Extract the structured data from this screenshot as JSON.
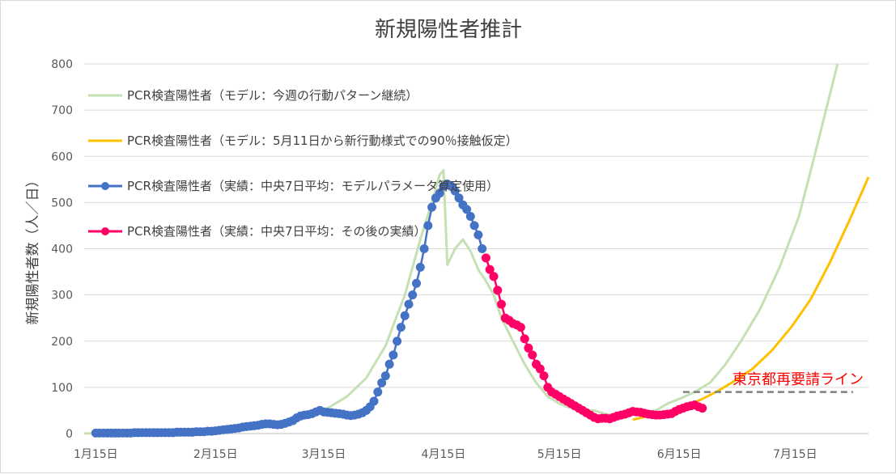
{
  "chart_data": {
    "type": "line",
    "title": "新規陽性者推計",
    "ylabel": "新規陽性者数（人／日）",
    "xlabel": "",
    "ylim": [
      0,
      800
    ],
    "yticks": [
      "0",
      "100",
      "200",
      "300",
      "400",
      "500",
      "600",
      "700",
      "800"
    ],
    "xticks": [
      {
        "label": "1月15日",
        "day": 0
      },
      {
        "label": "2月15日",
        "day": 31
      },
      {
        "label": "3月15日",
        "day": 59
      },
      {
        "label": "4月15日",
        "day": 90
      },
      {
        "label": "5月15日",
        "day": 120
      },
      {
        "label": "6月15日",
        "day": 151
      },
      {
        "label": "7月15日",
        "day": 181
      }
    ],
    "xlim": [
      -3,
      200
    ],
    "grid": "horizontal",
    "legend_position": "top-left",
    "series": [
      {
        "name": "PCR検査陽性者（モデル：今週の行動パターン継続）",
        "color": "#c5e0b4",
        "marker": false,
        "points": [
          [
            -3,
            0
          ],
          [
            0,
            1
          ],
          [
            10,
            2
          ],
          [
            20,
            3
          ],
          [
            30,
            6
          ],
          [
            40,
            13
          ],
          [
            45,
            18
          ],
          [
            50,
            28
          ],
          [
            55,
            40
          ],
          [
            60,
            55
          ],
          [
            65,
            80
          ],
          [
            70,
            120
          ],
          [
            75,
            190
          ],
          [
            80,
            300
          ],
          [
            84,
            420
          ],
          [
            87,
            500
          ],
          [
            89,
            560
          ],
          [
            90,
            570
          ],
          [
            91,
            365
          ],
          [
            93,
            400
          ],
          [
            95,
            420
          ],
          [
            97,
            395
          ],
          [
            99,
            355
          ],
          [
            101,
            330
          ],
          [
            103,
            300
          ],
          [
            105,
            250
          ],
          [
            108,
            200
          ],
          [
            111,
            150
          ],
          [
            114,
            110
          ],
          [
            117,
            80
          ],
          [
            120,
            65
          ],
          [
            123,
            55
          ],
          [
            126,
            48
          ],
          [
            129,
            50
          ],
          [
            132,
            42
          ],
          [
            134,
            40
          ],
          [
            137,
            45
          ],
          [
            141,
            45
          ],
          [
            145,
            50
          ],
          [
            148,
            65
          ],
          [
            151,
            75
          ],
          [
            155,
            90
          ],
          [
            159,
            110
          ],
          [
            163,
            150
          ],
          [
            167,
            200
          ],
          [
            172,
            270
          ],
          [
            177,
            360
          ],
          [
            182,
            470
          ],
          [
            186,
            600
          ],
          [
            189,
            700
          ],
          [
            192,
            800
          ]
        ]
      },
      {
        "name": "PCR検査陽性者（モデル：5月11日から新行動様式での90％接触仮定）",
        "color": "#ffc000",
        "marker": false,
        "points": [
          [
            139,
            30
          ],
          [
            144,
            40
          ],
          [
            149,
            50
          ],
          [
            153,
            60
          ],
          [
            157,
            75
          ],
          [
            161,
            92
          ],
          [
            165,
            112
          ],
          [
            170,
            140
          ],
          [
            175,
            180
          ],
          [
            180,
            230
          ],
          [
            185,
            290
          ],
          [
            190,
            370
          ],
          [
            195,
            460
          ],
          [
            200,
            555
          ]
        ]
      },
      {
        "name": "PCR検査陽性者（実績：中央7日平均：モデルパラメータ算定使用）",
        "color": "#4472c4",
        "marker": true,
        "points": [
          [
            0,
            1
          ],
          [
            1,
            1
          ],
          [
            2,
            1
          ],
          [
            3,
            1
          ],
          [
            4,
            1
          ],
          [
            5,
            1
          ],
          [
            6,
            1
          ],
          [
            7,
            1
          ],
          [
            8,
            1
          ],
          [
            9,
            1
          ],
          [
            10,
            2
          ],
          [
            11,
            2
          ],
          [
            12,
            2
          ],
          [
            13,
            2
          ],
          [
            14,
            2
          ],
          [
            15,
            2
          ],
          [
            16,
            2
          ],
          [
            17,
            2
          ],
          [
            18,
            2
          ],
          [
            19,
            2
          ],
          [
            20,
            2
          ],
          [
            21,
            3
          ],
          [
            22,
            3
          ],
          [
            23,
            3
          ],
          [
            24,
            3
          ],
          [
            25,
            3
          ],
          [
            26,
            4
          ],
          [
            27,
            4
          ],
          [
            28,
            4
          ],
          [
            29,
            5
          ],
          [
            30,
            5
          ],
          [
            31,
            6
          ],
          [
            32,
            7
          ],
          [
            33,
            8
          ],
          [
            34,
            9
          ],
          [
            35,
            10
          ],
          [
            36,
            11
          ],
          [
            37,
            12
          ],
          [
            38,
            14
          ],
          [
            39,
            15
          ],
          [
            40,
            16
          ],
          [
            41,
            17
          ],
          [
            42,
            18
          ],
          [
            43,
            20
          ],
          [
            44,
            21
          ],
          [
            45,
            21
          ],
          [
            46,
            20
          ],
          [
            47,
            19
          ],
          [
            48,
            20
          ],
          [
            49,
            22
          ],
          [
            50,
            25
          ],
          [
            51,
            28
          ],
          [
            52,
            34
          ],
          [
            53,
            38
          ],
          [
            54,
            40
          ],
          [
            55,
            41
          ],
          [
            56,
            43
          ],
          [
            57,
            47
          ],
          [
            58,
            50
          ],
          [
            59,
            47
          ],
          [
            60,
            46
          ],
          [
            61,
            45
          ],
          [
            62,
            44
          ],
          [
            63,
            43
          ],
          [
            64,
            42
          ],
          [
            65,
            40
          ],
          [
            66,
            39
          ],
          [
            67,
            40
          ],
          [
            68,
            42
          ],
          [
            69,
            45
          ],
          [
            70,
            50
          ],
          [
            71,
            58
          ],
          [
            72,
            70
          ],
          [
            73,
            90
          ],
          [
            74,
            110
          ],
          [
            75,
            125
          ],
          [
            76,
            150
          ],
          [
            77,
            170
          ],
          [
            78,
            200
          ],
          [
            79,
            230
          ],
          [
            80,
            255
          ],
          [
            81,
            280
          ],
          [
            82,
            300
          ],
          [
            83,
            325
          ],
          [
            84,
            360
          ],
          [
            85,
            400
          ],
          [
            86,
            450
          ],
          [
            87,
            490
          ],
          [
            88,
            510
          ],
          [
            89,
            520
          ],
          [
            90,
            535
          ],
          [
            91,
            540
          ],
          [
            92,
            535
          ],
          [
            93,
            525
          ],
          [
            94,
            510
          ],
          [
            95,
            495
          ],
          [
            96,
            485
          ],
          [
            97,
            470
          ],
          [
            98,
            450
          ],
          [
            99,
            430
          ],
          [
            100,
            400
          ]
        ]
      },
      {
        "name": "PCR検査陽性者（実績：中央7日平均：その後の実績）",
        "color": "#ff0066",
        "marker": true,
        "points": [
          [
            101,
            380
          ],
          [
            102,
            355
          ],
          [
            103,
            340
          ],
          [
            104,
            310
          ],
          [
            105,
            280
          ],
          [
            106,
            250
          ],
          [
            107,
            245
          ],
          [
            108,
            238
          ],
          [
            109,
            235
          ],
          [
            110,
            230
          ],
          [
            111,
            205
          ],
          [
            112,
            185
          ],
          [
            113,
            170
          ],
          [
            114,
            150
          ],
          [
            115,
            140
          ],
          [
            116,
            125
          ],
          [
            117,
            100
          ],
          [
            118,
            90
          ],
          [
            119,
            85
          ],
          [
            120,
            80
          ],
          [
            121,
            75
          ],
          [
            122,
            70
          ],
          [
            123,
            65
          ],
          [
            124,
            60
          ],
          [
            125,
            55
          ],
          [
            126,
            50
          ],
          [
            127,
            45
          ],
          [
            128,
            40
          ],
          [
            129,
            35
          ],
          [
            130,
            32
          ],
          [
            131,
            33
          ],
          [
            132,
            33
          ],
          [
            133,
            32
          ],
          [
            134,
            35
          ],
          [
            135,
            38
          ],
          [
            136,
            40
          ],
          [
            137,
            42
          ],
          [
            138,
            45
          ],
          [
            139,
            48
          ],
          [
            140,
            47
          ],
          [
            141,
            46
          ],
          [
            142,
            44
          ],
          [
            143,
            42
          ],
          [
            144,
            41
          ],
          [
            145,
            40
          ],
          [
            146,
            40
          ],
          [
            147,
            41
          ],
          [
            148,
            42
          ],
          [
            149,
            43
          ],
          [
            150,
            48
          ],
          [
            151,
            52
          ],
          [
            152,
            55
          ],
          [
            153,
            58
          ],
          [
            154,
            60
          ],
          [
            155,
            62
          ],
          [
            156,
            58
          ],
          [
            157,
            55
          ]
        ]
      }
    ],
    "reference_line": {
      "label": "東京都再要請ライン",
      "value": 90,
      "x_from": 152,
      "x_to": 196,
      "color": "#7f7f7f",
      "label_color": "#ff0000"
    }
  }
}
